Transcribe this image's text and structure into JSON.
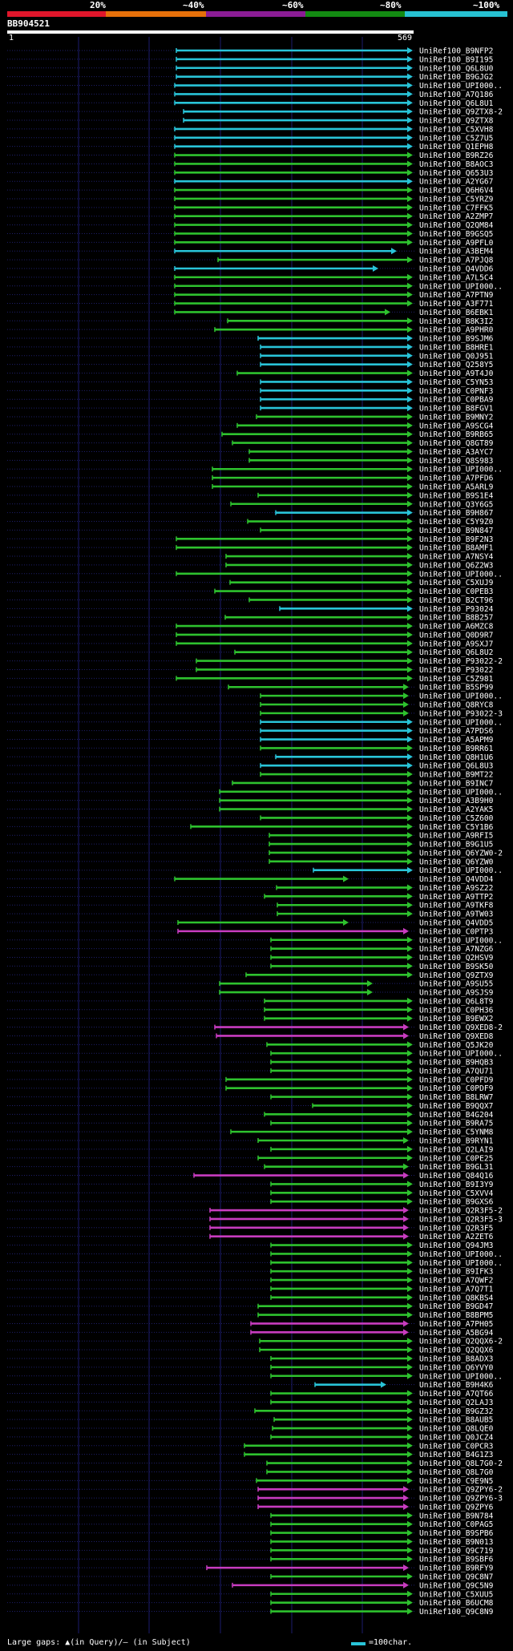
{
  "header": {
    "percent_labels": [
      "20%",
      "~40%",
      "~60%",
      "~80%",
      "~100%"
    ],
    "identity_colors": [
      "#e0162b",
      "#e6700a",
      "#8b1c95",
      "#138a12",
      "#27c1d2"
    ],
    "query_id": "BB904521",
    "ruler_start": "1",
    "ruler_end": "569"
  },
  "footer": {
    "legend": "Large gaps: ▲(in Query)/– (in Subject)",
    "scale": "=100char."
  },
  "palette": {
    "c": "#29c4d8",
    "g": "#2ec22e",
    "m": "#c83cc0"
  },
  "hits": [
    [
      "UniRef100_B9NFP2",
      220,
      515,
      "c"
    ],
    [
      "UniRef100_B9I195",
      220,
      515,
      "c"
    ],
    [
      "UniRef100_Q6L8U0",
      220,
      515,
      "c"
    ],
    [
      "UniRef100_B9GJG2",
      220,
      515,
      "c"
    ],
    [
      "UniRef100_UPI000..",
      218,
      515,
      "c"
    ],
    [
      "UniRef100_A7Q186",
      218,
      515,
      "c"
    ],
    [
      "UniRef100_Q6L8U1",
      218,
      515,
      "c"
    ],
    [
      "UniRef100_Q9ZTX8-2",
      229,
      515,
      "c"
    ],
    [
      "UniRef100_Q9ZTX8",
      229,
      515,
      "c"
    ],
    [
      "UniRef100_C5XVH8",
      218,
      515,
      "c"
    ],
    [
      "UniRef100_C5Z7U5",
      218,
      515,
      "c"
    ],
    [
      "UniRef100_Q1EPH8",
      218,
      515,
      "c"
    ],
    [
      "UniRef100_B9RZ26",
      218,
      515,
      "g"
    ],
    [
      "UniRef100_B8AOC3",
      218,
      515,
      "g"
    ],
    [
      "UniRef100_Q653U3",
      218,
      515,
      "g"
    ],
    [
      "UniRef100_A2YG67",
      218,
      515,
      "c"
    ],
    [
      "UniRef100_Q6H6V4",
      218,
      515,
      "g"
    ],
    [
      "UniRef100_C5YRZ9",
      218,
      515,
      "g"
    ],
    [
      "UniRef100_C7FFK5",
      218,
      515,
      "g"
    ],
    [
      "UniRef100_A2ZMP7",
      218,
      515,
      "g"
    ],
    [
      "UniRef100_Q2QM84",
      218,
      515,
      "g"
    ],
    [
      "UniRef100_B9GSQ5",
      218,
      515,
      "g"
    ],
    [
      "UniRef100_A9PFL0",
      218,
      515,
      "g"
    ],
    [
      "UniRef100_A3BEM4",
      218,
      495,
      "c"
    ],
    [
      "UniRef100_A7PJQ8",
      272,
      515,
      "g"
    ],
    [
      "UniRef100_Q4VDD6",
      218,
      472,
      "c"
    ],
    [
      "UniRef100_A7L5C4",
      218,
      515,
      "g"
    ],
    [
      "UniRef100_UPI000..",
      218,
      515,
      "g"
    ],
    [
      "UniRef100_A7PTN9",
      218,
      515,
      "g"
    ],
    [
      "UniRef100_A3F771",
      218,
      515,
      "g"
    ],
    [
      "UniRef100_B6EBK1",
      218,
      487,
      "g"
    ],
    [
      "UniRef100_B8K3I2",
      284,
      515,
      "g"
    ],
    [
      "UniRef100_A9PHR0",
      268,
      515,
      "g"
    ],
    [
      "UniRef100_B9SJM6",
      322,
      515,
      "c"
    ],
    [
      "UniRef100_B8HRE1",
      325,
      515,
      "c"
    ],
    [
      "UniRef100_Q0J951",
      325,
      515,
      "c"
    ],
    [
      "UniRef100_Q258Y5",
      325,
      515,
      "c"
    ],
    [
      "UniRef100_A9T4J0",
      296,
      515,
      "g"
    ],
    [
      "UniRef100_C5YN53",
      325,
      515,
      "c"
    ],
    [
      "UniRef100_C0PNF3",
      325,
      515,
      "c"
    ],
    [
      "UniRef100_C0PBA9",
      325,
      515,
      "c"
    ],
    [
      "UniRef100_B8FGV1",
      325,
      515,
      "c"
    ],
    [
      "UniRef100_B9MNY2",
      320,
      515,
      "g"
    ],
    [
      "UniRef100_A9SCG4",
      296,
      515,
      "g"
    ],
    [
      "UniRef100_B9RB65",
      277,
      515,
      "g"
    ],
    [
      "UniRef100_Q8GT89",
      290,
      515,
      "g"
    ],
    [
      "UniRef100_A3AYC7",
      311,
      515,
      "g"
    ],
    [
      "UniRef100_Q8S983",
      311,
      515,
      "g"
    ],
    [
      "UniRef100_UPI000..",
      265,
      515,
      "g"
    ],
    [
      "UniRef100_A7PFD6",
      265,
      515,
      "g"
    ],
    [
      "UniRef100_A5ARL9",
      265,
      515,
      "g"
    ],
    [
      "UniRef100_B9S1E4",
      322,
      515,
      "g"
    ],
    [
      "UniRef100_Q3Y6G5",
      288,
      515,
      "g"
    ],
    [
      "UniRef100_B9H867",
      344,
      515,
      "c"
    ],
    [
      "UniRef100_C5Y9Z0",
      309,
      515,
      "g"
    ],
    [
      "UniRef100_B9N847",
      325,
      515,
      "g"
    ],
    [
      "UniRef100_B9F2N3",
      220,
      515,
      "g"
    ],
    [
      "UniRef100_B8AMF1",
      220,
      515,
      "g"
    ],
    [
      "UniRef100_A7NSY4",
      282,
      515,
      "g"
    ],
    [
      "UniRef100_Q6Z2W3",
      282,
      515,
      "g"
    ],
    [
      "UniRef100_UPI000..",
      220,
      515,
      "g"
    ],
    [
      "UniRef100_C5XUJ9",
      287,
      515,
      "g"
    ],
    [
      "UniRef100_C0PEB3",
      268,
      515,
      "g"
    ],
    [
      "UniRef100_B2CT96",
      311,
      515,
      "g"
    ],
    [
      "UniRef100_P93024",
      349,
      515,
      "c"
    ],
    [
      "UniRef100_B8B257",
      281,
      515,
      "g"
    ],
    [
      "UniRef100_A6MZC8",
      220,
      515,
      "g"
    ],
    [
      "UniRef100_Q0D9R7",
      220,
      515,
      "g"
    ],
    [
      "UniRef100_A9SXJ7",
      220,
      515,
      "g"
    ],
    [
      "UniRef100_Q6L8U2",
      293,
      515,
      "g"
    ],
    [
      "UniRef100_P93022-2",
      245,
      515,
      "g"
    ],
    [
      "UniRef100_P93022",
      245,
      515,
      "g"
    ],
    [
      "UniRef100_C5Z981",
      220,
      515,
      "g"
    ],
    [
      "UniRef100_B5SP99",
      285,
      510,
      "g"
    ],
    [
      "UniRef100_UPI000..",
      325,
      510,
      "g"
    ],
    [
      "UniRef100_Q8RYC8",
      325,
      510,
      "g"
    ],
    [
      "UniRef100_P93022-3",
      325,
      510,
      "g"
    ],
    [
      "UniRef100_UPI000..",
      325,
      515,
      "c"
    ],
    [
      "UniRef100_A7PDS6",
      325,
      515,
      "c"
    ],
    [
      "UniRef100_A5APM9",
      325,
      515,
      "c"
    ],
    [
      "UniRef100_B9RR61",
      325,
      515,
      "g"
    ],
    [
      "UniRef100_Q8H1U6",
      344,
      515,
      "c"
    ],
    [
      "UniRef100_Q6L8U3",
      325,
      515,
      "c"
    ],
    [
      "UniRef100_B9MT22",
      325,
      515,
      "g"
    ],
    [
      "UniRef100_B9INC7",
      290,
      515,
      "g"
    ],
    [
      "UniRef100_UPI000..",
      274,
      515,
      "g"
    ],
    [
      "UniRef100_A3B9H0",
      274,
      515,
      "g"
    ],
    [
      "UniRef100_A2YAK5",
      274,
      515,
      "g"
    ],
    [
      "UniRef100_C5Z600",
      325,
      515,
      "g"
    ],
    [
      "UniRef100_C5Y1B6",
      238,
      515,
      "g"
    ],
    [
      "UniRef100_A9RFI5",
      336,
      515,
      "g"
    ],
    [
      "UniRef100_B9G1U5",
      336,
      515,
      "g"
    ],
    [
      "UniRef100_Q6YZW0-2",
      336,
      515,
      "g"
    ],
    [
      "UniRef100_Q6YZW0",
      336,
      515,
      "g"
    ],
    [
      "UniRef100_UPI000..",
      391,
      515,
      "c"
    ],
    [
      "UniRef100_Q4VDD4",
      218,
      435,
      "g"
    ],
    [
      "UniRef100_A9SZ22",
      345,
      515,
      "g"
    ],
    [
      "UniRef100_A9TTP2",
      330,
      515,
      "g"
    ],
    [
      "UniRef100_A9TKF8",
      346,
      515,
      "g"
    ],
    [
      "UniRef100_A9TW03",
      346,
      515,
      "g"
    ],
    [
      "UniRef100_Q4VDD5",
      222,
      435,
      "g"
    ],
    [
      "UniRef100_C0PTP3",
      222,
      510,
      "m"
    ],
    [
      "UniRef100_UPI000..",
      338,
      515,
      "g"
    ],
    [
      "UniRef100_A7NZG6",
      338,
      515,
      "g"
    ],
    [
      "UniRef100_Q2HSV9",
      338,
      515,
      "g"
    ],
    [
      "UniRef100_B9SK50",
      338,
      515,
      "g"
    ],
    [
      "UniRef100_Q9ZTX9",
      307,
      515,
      "g"
    ],
    [
      "UniRef100_A9SU55",
      274,
      465,
      "g"
    ],
    [
      "UniRef100_A9SJS9",
      274,
      465,
      "g"
    ],
    [
      "UniRef100_Q6L8T9",
      330,
      515,
      "g"
    ],
    [
      "UniRef100_C0PH36",
      330,
      515,
      "g"
    ],
    [
      "UniRef100_B9EWX2",
      330,
      515,
      "g"
    ],
    [
      "UniRef100_Q9XED8-2",
      268,
      510,
      "m"
    ],
    [
      "UniRef100_Q9XED8",
      270,
      510,
      "m"
    ],
    [
      "UniRef100_Q5JK20",
      333,
      515,
      "g"
    ],
    [
      "UniRef100_UPI000..",
      338,
      515,
      "g"
    ],
    [
      "UniRef100_B9HQB3",
      338,
      515,
      "g"
    ],
    [
      "UniRef100_A7QU71",
      338,
      515,
      "g"
    ],
    [
      "UniRef100_C0PFD9",
      282,
      515,
      "g"
    ],
    [
      "UniRef100_C0PDF9",
      282,
      515,
      "g"
    ],
    [
      "UniRef100_B8LRW7",
      338,
      515,
      "g"
    ],
    [
      "UniRef100_B9QQX7",
      390,
      515,
      "g"
    ],
    [
      "UniRef100_B4G204",
      330,
      515,
      "g"
    ],
    [
      "UniRef100_B9RA75",
      338,
      515,
      "g"
    ],
    [
      "UniRef100_C5YNM8",
      288,
      515,
      "g"
    ],
    [
      "UniRef100_B9RYN1",
      322,
      510,
      "g"
    ],
    [
      "UniRef100_Q2LAI9",
      338,
      515,
      "g"
    ],
    [
      "UniRef100_C0PE25",
      322,
      515,
      "g"
    ],
    [
      "UniRef100_B9GL31",
      330,
      510,
      "g"
    ],
    [
      "UniRef100_Q84Q16",
      242,
      510,
      "m"
    ],
    [
      "UniRef100_B9I3Y9",
      338,
      515,
      "g"
    ],
    [
      "UniRef100_C5XVV4",
      338,
      515,
      "g"
    ],
    [
      "UniRef100_B9GXS6",
      338,
      515,
      "g"
    ],
    [
      "UniRef100_Q2R3F5-2",
      262,
      510,
      "m"
    ],
    [
      "UniRef100_Q2R3F5-3",
      262,
      510,
      "m"
    ],
    [
      "UniRef100_Q2R3F5",
      262,
      510,
      "m"
    ],
    [
      "UniRef100_A2ZET6",
      262,
      510,
      "m"
    ],
    [
      "UniRef100_Q94JM3",
      338,
      515,
      "g"
    ],
    [
      "UniRef100_UPI000..",
      338,
      515,
      "g"
    ],
    [
      "UniRef100_UPI000..",
      338,
      515,
      "g"
    ],
    [
      "UniRef100_B9IFK3",
      338,
      515,
      "g"
    ],
    [
      "UniRef100_A7QWF2",
      338,
      515,
      "g"
    ],
    [
      "UniRef100_A7Q7T1",
      338,
      515,
      "g"
    ],
    [
      "UniRef100_Q8KBS4",
      338,
      515,
      "g"
    ],
    [
      "UniRef100_B9GD47",
      322,
      515,
      "g"
    ],
    [
      "UniRef100_B8BPM5",
      322,
      515,
      "g"
    ],
    [
      "UniRef100_A7PH05",
      313,
      510,
      "m"
    ],
    [
      "UniRef100_A5BG94",
      313,
      510,
      "m"
    ],
    [
      "UniRef100_Q2QQX6-2",
      324,
      515,
      "g"
    ],
    [
      "UniRef100_Q2QQX6",
      324,
      515,
      "g"
    ],
    [
      "UniRef100_B8ADX3",
      338,
      515,
      "g"
    ],
    [
      "UniRef100_Q6YVY0",
      338,
      515,
      "g"
    ],
    [
      "UniRef100_UPI000..",
      338,
      515,
      "g"
    ],
    [
      "UniRef100_B9H4K6",
      393,
      482,
      "c"
    ],
    [
      "UniRef100_A7QT66",
      338,
      515,
      "g"
    ],
    [
      "UniRef100_Q2LAJ3",
      338,
      515,
      "g"
    ],
    [
      "UniRef100_B9GZ32",
      318,
      515,
      "g"
    ],
    [
      "UniRef100_B8AUB5",
      342,
      515,
      "g"
    ],
    [
      "UniRef100_Q8LQE0",
      340,
      515,
      "g"
    ],
    [
      "UniRef100_Q0JCZ4",
      338,
      515,
      "g"
    ],
    [
      "UniRef100_C0PCR3",
      305,
      515,
      "g"
    ],
    [
      "UniRef100_B4G1Z3",
      305,
      515,
      "g"
    ],
    [
      "UniRef100_Q8L7G0-2",
      333,
      515,
      "g"
    ],
    [
      "UniRef100_Q8L7G0",
      333,
      515,
      "g"
    ],
    [
      "UniRef100_C9E9N5",
      320,
      515,
      "g"
    ],
    [
      "UniRef100_Q9ZPY6-2",
      322,
      510,
      "m"
    ],
    [
      "UniRef100_Q9ZPY6-3",
      322,
      510,
      "m"
    ],
    [
      "UniRef100_Q9ZPY6",
      322,
      510,
      "m"
    ],
    [
      "UniRef100_B9N784",
      338,
      515,
      "g"
    ],
    [
      "UniRef100_C0PAG5",
      338,
      515,
      "g"
    ],
    [
      "UniRef100_B9SPB6",
      338,
      515,
      "g"
    ],
    [
      "UniRef100_B9N013",
      338,
      515,
      "g"
    ],
    [
      "UniRef100_Q9C719",
      338,
      515,
      "g"
    ],
    [
      "UniRef100_B9SBF6",
      338,
      515,
      "g"
    ],
    [
      "UniRef100_B9RFY9",
      258,
      510,
      "m"
    ],
    [
      "UniRef100_Q9C8N7",
      338,
      515,
      "g"
    ],
    [
      "UniRef100_Q9C5N9",
      290,
      510,
      "m"
    ],
    [
      "UniRef100_C5XUU5",
      338,
      515,
      "g"
    ],
    [
      "UniRef100_B6UCM8",
      338,
      515,
      "g"
    ],
    [
      "UniRef100_Q9C8N9",
      338,
      515,
      "g"
    ]
  ]
}
